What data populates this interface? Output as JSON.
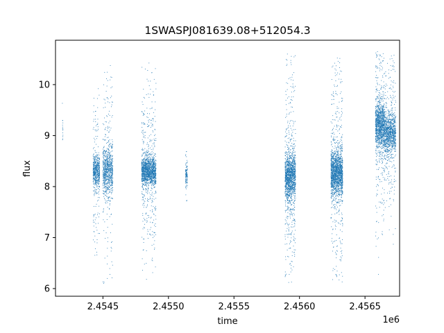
{
  "chart_data": {
    "type": "scatter",
    "title": "1SWASPJ081639.08+512054.3",
    "xlabel": "time",
    "ylabel": "flux",
    "x_offset_label": "1e6",
    "xlim": [
      2454138,
      2456764
    ],
    "ylim": [
      5.85,
      10.87
    ],
    "x_ticks": [
      2454500,
      2455000,
      2455500,
      2456000,
      2456500
    ],
    "x_tick_labels": [
      "2.4545",
      "2.4550",
      "2.4555",
      "2.4560",
      "2.4565"
    ],
    "y_ticks": [
      6,
      7,
      8,
      9,
      10
    ],
    "y_tick_labels": [
      "6",
      "7",
      "8",
      "9",
      "10"
    ],
    "grid": false,
    "marker_color": "#1f77b4",
    "series": [
      {
        "clusters": [
          {
            "x_range": [
              2454190,
              2454195
            ],
            "y_center": 9.1,
            "y_spread": 0.25,
            "core_spread": 0.12,
            "points": 14,
            "y_min": 8.7,
            "y_max": 9.65
          },
          {
            "x_range": [
              2454425,
              2454475
            ],
            "y_center": 8.3,
            "y_spread": 0.45,
            "core_spread": 0.15,
            "points": 600,
            "y_min": 6.5,
            "y_max": 10.0
          },
          {
            "x_range": [
              2454500,
              2454575
            ],
            "y_center": 8.3,
            "y_spread": 0.55,
            "core_spread": 0.22,
            "points": 900,
            "y_min": 6.1,
            "y_max": 10.4
          },
          {
            "x_range": [
              2454795,
              2454905
            ],
            "y_center": 8.3,
            "y_spread": 0.45,
            "core_spread": 0.14,
            "points": 1600,
            "y_min": 6.1,
            "y_max": 10.6
          },
          {
            "x_range": [
              2455130,
              2455145
            ],
            "y_center": 8.2,
            "y_spread": 0.2,
            "core_spread": 0.1,
            "points": 120,
            "y_min": 6.75,
            "y_max": 8.75
          },
          {
            "x_range": [
              2455890,
              2455970
            ],
            "y_center": 8.2,
            "y_spread": 0.6,
            "core_spread": 0.22,
            "points": 1600,
            "y_min": 6.1,
            "y_max": 10.65
          },
          {
            "x_range": [
              2456240,
              2456330
            ],
            "y_center": 8.25,
            "y_spread": 0.6,
            "core_spread": 0.22,
            "points": 1800,
            "y_min": 6.1,
            "y_max": 10.65
          },
          {
            "x_range": [
              2456580,
              2456650
            ],
            "y_center": 9.2,
            "y_spread": 0.55,
            "core_spread": 0.22,
            "points": 1300,
            "y_min": 6.2,
            "y_max": 10.65
          },
          {
            "x_range": [
              2456650,
              2456735
            ],
            "y_center": 9.05,
            "y_spread": 0.45,
            "core_spread": 0.2,
            "points": 1100,
            "y_min": 6.1,
            "y_max": 10.6
          }
        ]
      }
    ]
  }
}
